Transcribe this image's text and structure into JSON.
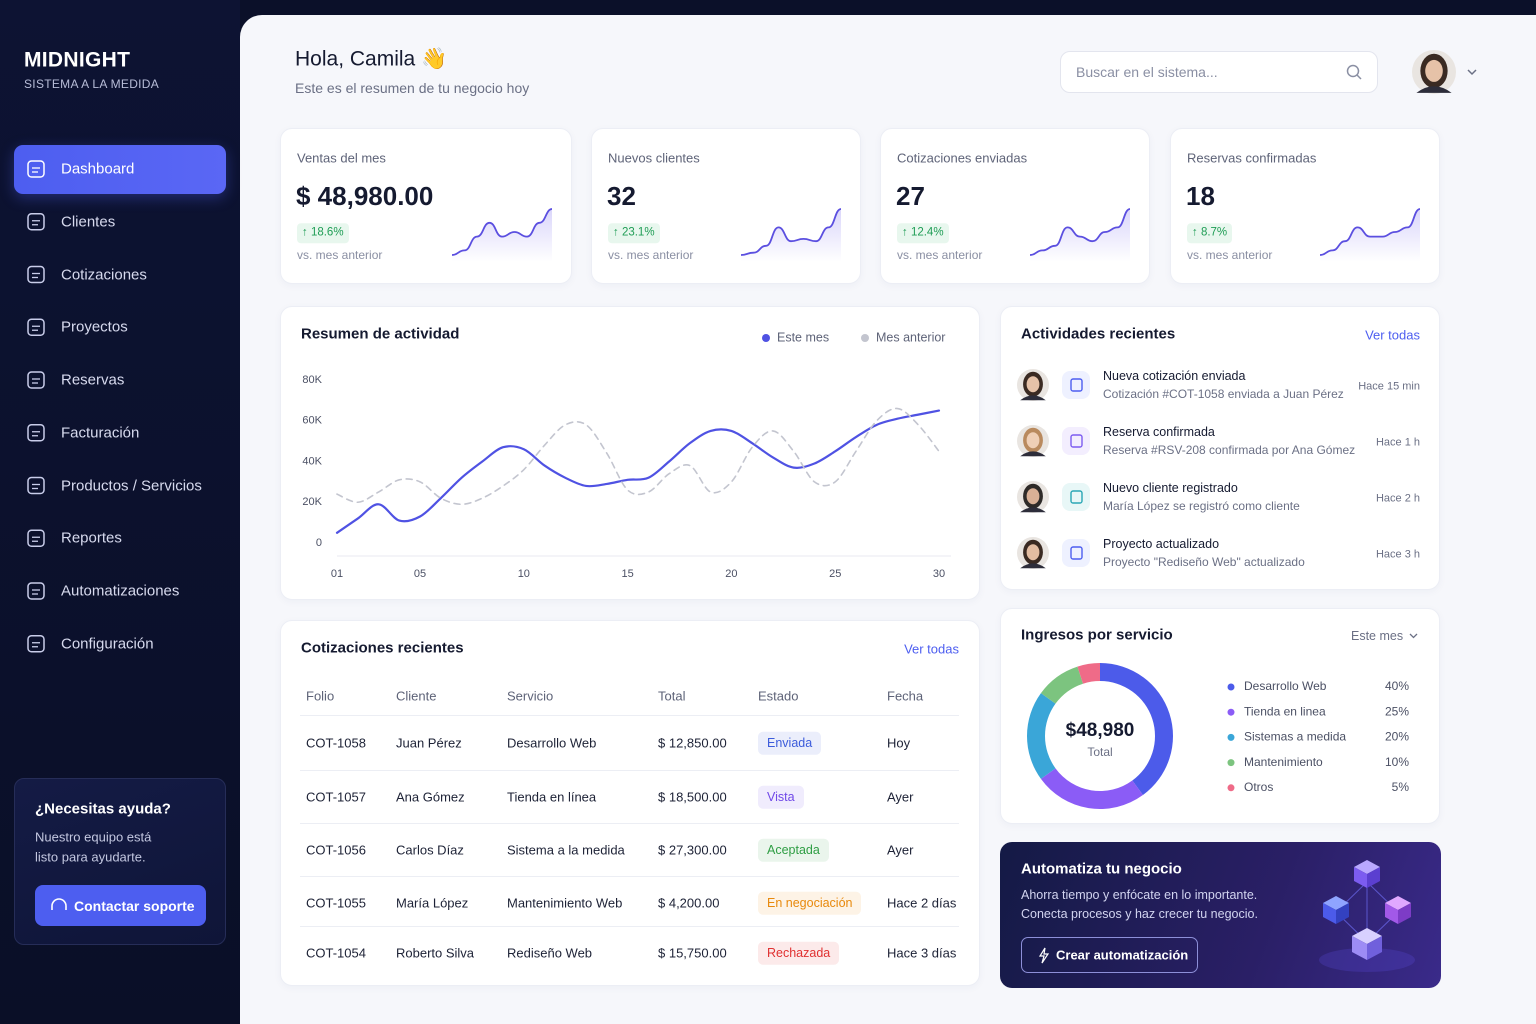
{
  "sidebar": {
    "brand": "MIDNIGHT",
    "tagline": "SISTEMA A LA MEDIDA",
    "nav": [
      "Dashboard",
      "Clientes",
      "Cotizaciones",
      "Proyectos",
      "Reservas",
      "Facturación",
      "Productos / Servicios",
      "Reportes",
      "Automatizaciones",
      "Configuración"
    ],
    "active": 0,
    "help": {
      "title": "¿Necesitas ayuda?",
      "text": [
        "Nuestro equipo está",
        "listo para ayudarte."
      ],
      "button": "Contactar soporte"
    }
  },
  "header": {
    "greeting": "Hola, Camila 👋",
    "subtitle": "Este es el resumen de tu negocio hoy",
    "search": "Buscar en el sistema..."
  },
  "kpis": [
    {
      "label": "Ventas del mes",
      "value": "$ 48,980.00",
      "change": "↑ 18.6%",
      "note": "vs. mes anterior",
      "trend": [
        2,
        3,
        6,
        9,
        6,
        7,
        6,
        9,
        12
      ]
    },
    {
      "label": "Nuevos clientes",
      "value": "32",
      "change": "↑ 23.1%",
      "note": "vs. mes anterior",
      "trend": [
        2,
        2.5,
        4,
        8,
        5,
        5.5,
        5,
        8,
        12
      ]
    },
    {
      "label": "Cotizaciones enviadas",
      "value": "27",
      "change": "↑ 12.4%",
      "note": "vs. mes anterior",
      "trend": [
        2,
        3,
        4,
        8,
        6,
        5,
        7,
        8,
        12
      ]
    },
    {
      "label": "Reservas confirmadas",
      "value": "18",
      "change": "↑ 8.7%",
      "note": "vs. mes anterior",
      "trend": [
        2,
        3,
        5,
        8,
        6,
        6,
        7,
        8,
        12
      ]
    }
  ],
  "activity_chart": {
    "type": "line",
    "title": "Resumen de actividad",
    "x": [
      1,
      2,
      3,
      4,
      5,
      6,
      7,
      8,
      9,
      10,
      11,
      12,
      13,
      14,
      15,
      16,
      17,
      18,
      19,
      20,
      21,
      22,
      23,
      24,
      25,
      26,
      27,
      28,
      29,
      30
    ],
    "series": [
      {
        "name": "Este mes",
        "color": "#4f52e3",
        "values": [
          5000,
          12000,
          19000,
          11000,
          13000,
          22000,
          32000,
          40000,
          47000,
          46000,
          38000,
          32000,
          28000,
          29000,
          31000,
          32000,
          40000,
          49000,
          55000,
          55000,
          49000,
          42000,
          37000,
          39000,
          45000,
          52000,
          58000,
          61000,
          63000,
          65000
        ]
      },
      {
        "name": "Mes anterior",
        "color": "#c3c5cf",
        "dashed": true,
        "values": [
          24000,
          20000,
          25000,
          31000,
          30000,
          22000,
          19000,
          22000,
          28000,
          36000,
          48000,
          58000,
          58000,
          44000,
          26000,
          25000,
          34000,
          38000,
          25000,
          30000,
          47000,
          55000,
          45000,
          30000,
          30000,
          45000,
          60000,
          66000,
          58000,
          45000
        ]
      }
    ],
    "xlim": [
      1,
      30
    ],
    "xticks": [
      {
        "value": 1,
        "label": "01"
      },
      {
        "value": 5,
        "label": "05"
      },
      10,
      15,
      20,
      25,
      30
    ],
    "ylim": [
      0,
      80000
    ],
    "yticks": [
      0,
      {
        "value": 20000,
        "label": "20K"
      },
      {
        "value": 40000,
        "label": "40K"
      },
      {
        "value": 60000,
        "label": "60K"
      },
      {
        "value": 80000,
        "label": "80K"
      }
    ],
    "grid": false,
    "legend": "top-right"
  },
  "activities": {
    "title": "Actividades recientes",
    "link": "Ver todas",
    "items": [
      {
        "title": "Nueva cotización enviada",
        "detail": "Cotización #COT-1058 enviada a Juan Pérez",
        "time": "Hace 15 min"
      },
      {
        "title": "Reserva confirmada",
        "detail": "Reserva #RSV-208 confirmada por Ana Gómez",
        "time": "Hace 1 h"
      },
      {
        "title": "Nuevo cliente registrado",
        "detail": "María López se registró como cliente",
        "time": "Hace 2 h"
      },
      {
        "title": "Proyecto actualizado",
        "detail": "Proyecto \"Rediseño Web\" actualizado",
        "time": "Hace 3 h"
      }
    ]
  },
  "quotes": {
    "title": "Cotizaciones recientes",
    "link": "Ver todas",
    "columns": [
      "Folio",
      "Cliente",
      "Servicio",
      "Total",
      "Estado",
      "Fecha"
    ],
    "rows": [
      [
        "COT-1058",
        "Juan Pérez",
        "Desarrollo Web",
        "$ 12,850.00",
        "Enviada",
        "Hoy"
      ],
      [
        "COT-1057",
        "Ana Gómez",
        "Tienda en línea",
        "$ 18,500.00",
        "Vista",
        "Ayer"
      ],
      [
        "COT-1056",
        "Carlos Díaz",
        "Sistema a la medida",
        "$ 27,300.00",
        "Aceptada",
        "Ayer"
      ],
      [
        "COT-1055",
        "María López",
        "Mantenimiento Web",
        "$ 4,200.00",
        "En negociación",
        "Hace 2 días"
      ],
      [
        "COT-1054",
        "Roberto Silva",
        "Rediseño Web",
        "$ 15,750.00",
        "Rechazada",
        "Hace 3 días"
      ]
    ],
    "status_colors": [
      "#3b5bdb",
      "#7048e8",
      "#2f9e44",
      "#e8890c",
      "#e03131"
    ]
  },
  "income": {
    "title": "Ingresos por servicio",
    "period": "Este mes",
    "total": "$48,980",
    "total_label": "Total",
    "chart_data": {
      "type": "pie",
      "categories": [
        "Desarrollo Web",
        "Tienda en linea",
        "Sistemas a medida",
        "Mantenimiento",
        "Otros"
      ],
      "values": [
        40,
        25,
        20,
        10,
        5
      ],
      "value_labels": [
        "40%",
        "25%",
        "20%",
        "10%",
        "5%"
      ],
      "colors": [
        "#4c5bea",
        "#8b5cf6",
        "#3aa6d8",
        "#7cc47f",
        "#ef6b88"
      ]
    }
  },
  "automation": {
    "title": "Automatiza tu negocio",
    "text": [
      "Ahorra tiempo y enfócate en lo importante.",
      "Conecta procesos y haz crecer tu negocio."
    ],
    "button": "Crear automatización"
  }
}
